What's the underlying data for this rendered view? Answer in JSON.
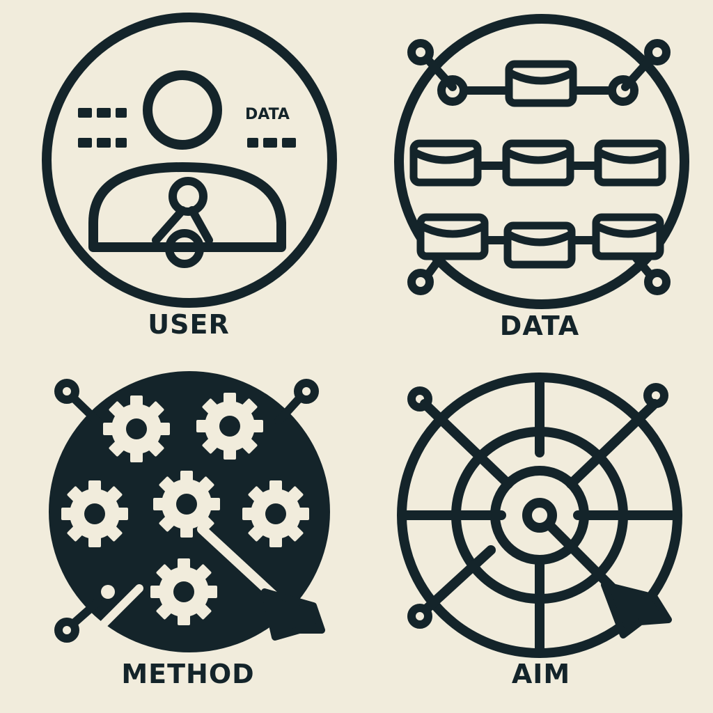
{
  "panels": {
    "user": {
      "label": "USER",
      "inner_text": "DATA"
    },
    "data": {
      "label": "DATA"
    },
    "method": {
      "label": "METHOD"
    },
    "aim": {
      "label": "AIM"
    }
  },
  "colors": {
    "background": "#f1ecdc",
    "ink": "#14242a"
  }
}
